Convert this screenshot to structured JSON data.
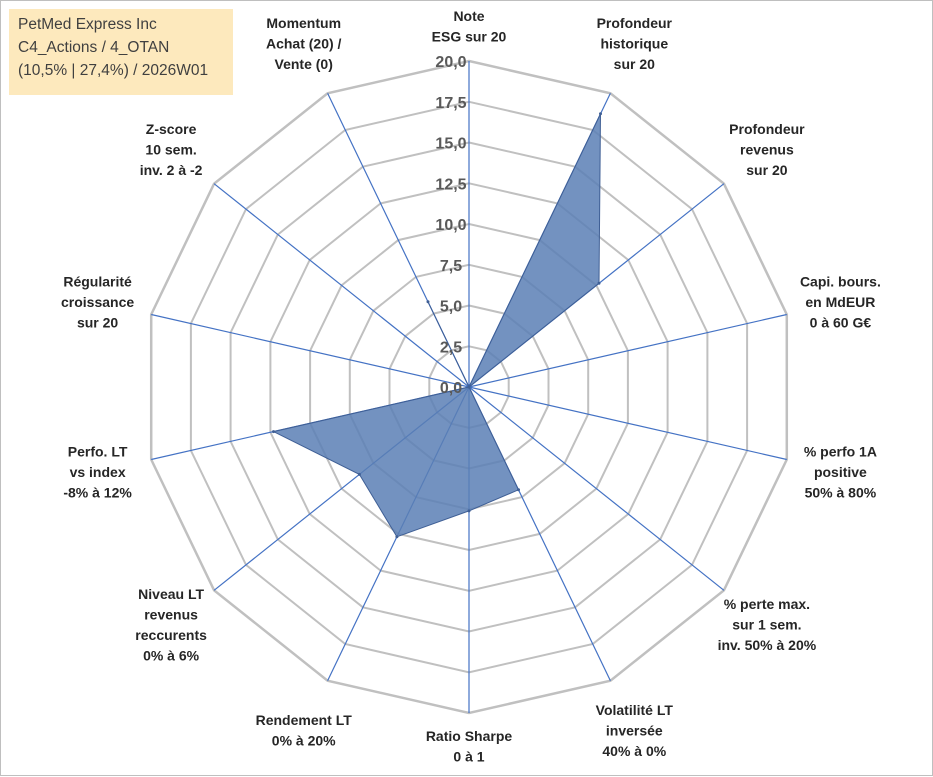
{
  "info": {
    "line1": "PetMed Express Inc",
    "line2": "C4_Actions / 4_OTAN",
    "line3": "(10,5% | 27,4%) / 2026W01"
  },
  "colors": {
    "grid": "#c0c0c0",
    "spoke": "#4472c4",
    "fill": "#5b7fb5",
    "stroke": "#3f5f95"
  },
  "chart_data": {
    "type": "radar",
    "title": "",
    "rmax": 20,
    "ticks": [
      "0,0",
      "2,5",
      "5,0",
      "7,5",
      "10,0",
      "12,5",
      "15,0",
      "17,5",
      "20,0"
    ],
    "categories": [
      [
        "Note",
        "ESG sur 20"
      ],
      [
        "Profondeur",
        "historique",
        "sur 20"
      ],
      [
        "Profondeur",
        "revenus",
        "sur 20"
      ],
      [
        "Capi. bours.",
        "en MdEUR",
        "0 à 60 G€"
      ],
      [
        "% perfo 1A",
        "positive",
        "50% à 80%"
      ],
      [
        "% perte max.",
        "sur 1 sem.",
        "inv. 50% à 20%"
      ],
      [
        "Volatilité LT",
        "inversée",
        "40% à 0%"
      ],
      [
        "Ratio Sharpe",
        "0 à 1"
      ],
      [
        "Rendement LT",
        "0% à 20%"
      ],
      [
        "Niveau LT",
        "revenus",
        "reccurents",
        "0% à 6%"
      ],
      [
        "Perfo. LT",
        "vs index",
        "-8% à 12%"
      ],
      [
        "Régularité",
        "croissance",
        "sur 20"
      ],
      [
        "Z-score",
        "10 sem.",
        "inv. 2 à -2"
      ],
      [
        "Momentum",
        "Achat (20) /",
        "Vente (0)"
      ]
    ],
    "series": [
      {
        "name": "PetMed Express Inc",
        "values": [
          0,
          18.6,
          10.2,
          0,
          0,
          0,
          7.0,
          7.6,
          10.2,
          8.6,
          12.3,
          0,
          0,
          5.8
        ]
      }
    ]
  }
}
